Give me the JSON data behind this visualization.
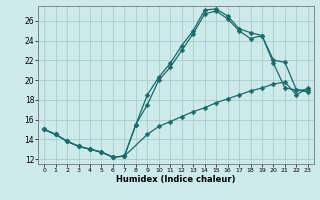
{
  "xlabel": "Humidex (Indice chaleur)",
  "background_color": "#cceaea",
  "grid_color": "#aacccc",
  "line_color": "#1a6b6b",
  "xlim": [
    -0.5,
    23.5
  ],
  "ylim": [
    11.5,
    27.5
  ],
  "xticks": [
    0,
    1,
    2,
    3,
    4,
    5,
    6,
    7,
    8,
    9,
    10,
    11,
    12,
    13,
    14,
    15,
    16,
    17,
    18,
    19,
    20,
    21,
    22,
    23
  ],
  "yticks": [
    12,
    14,
    16,
    18,
    20,
    22,
    24,
    26
  ],
  "line1_x": [
    0,
    1,
    2,
    3,
    4,
    5,
    6,
    7,
    8,
    9,
    10,
    11,
    12,
    13,
    14,
    15,
    16,
    17,
    18,
    19,
    20,
    21,
    22,
    23
  ],
  "line1_y": [
    15.0,
    14.5,
    13.8,
    13.3,
    13.0,
    12.7,
    12.2,
    12.3,
    15.5,
    18.5,
    20.3,
    21.7,
    23.5,
    25.0,
    27.1,
    27.2,
    26.5,
    25.2,
    24.8,
    24.5,
    21.7,
    19.2,
    19.0,
    18.8
  ],
  "line2_x": [
    0,
    1,
    2,
    3,
    4,
    5,
    6,
    7,
    8,
    9,
    10,
    11,
    12,
    13,
    14,
    15,
    16,
    17,
    18,
    19,
    20,
    21,
    22,
    23
  ],
  "line2_y": [
    15.0,
    14.5,
    13.8,
    13.3,
    13.0,
    12.7,
    12.2,
    12.3,
    15.5,
    17.5,
    20.0,
    21.3,
    23.0,
    24.7,
    26.7,
    27.0,
    26.2,
    25.0,
    24.2,
    24.5,
    22.0,
    21.8,
    19.0,
    19.0
  ],
  "line3_x": [
    0,
    1,
    2,
    3,
    4,
    5,
    6,
    7,
    9,
    10,
    11,
    12,
    13,
    14,
    15,
    16,
    17,
    18,
    19,
    20,
    21,
    22,
    23
  ],
  "line3_y": [
    15.0,
    14.5,
    13.8,
    13.3,
    13.0,
    12.7,
    12.2,
    12.3,
    14.5,
    15.3,
    15.8,
    16.3,
    16.8,
    17.2,
    17.7,
    18.1,
    18.5,
    18.9,
    19.2,
    19.6,
    19.8,
    18.5,
    19.2
  ]
}
